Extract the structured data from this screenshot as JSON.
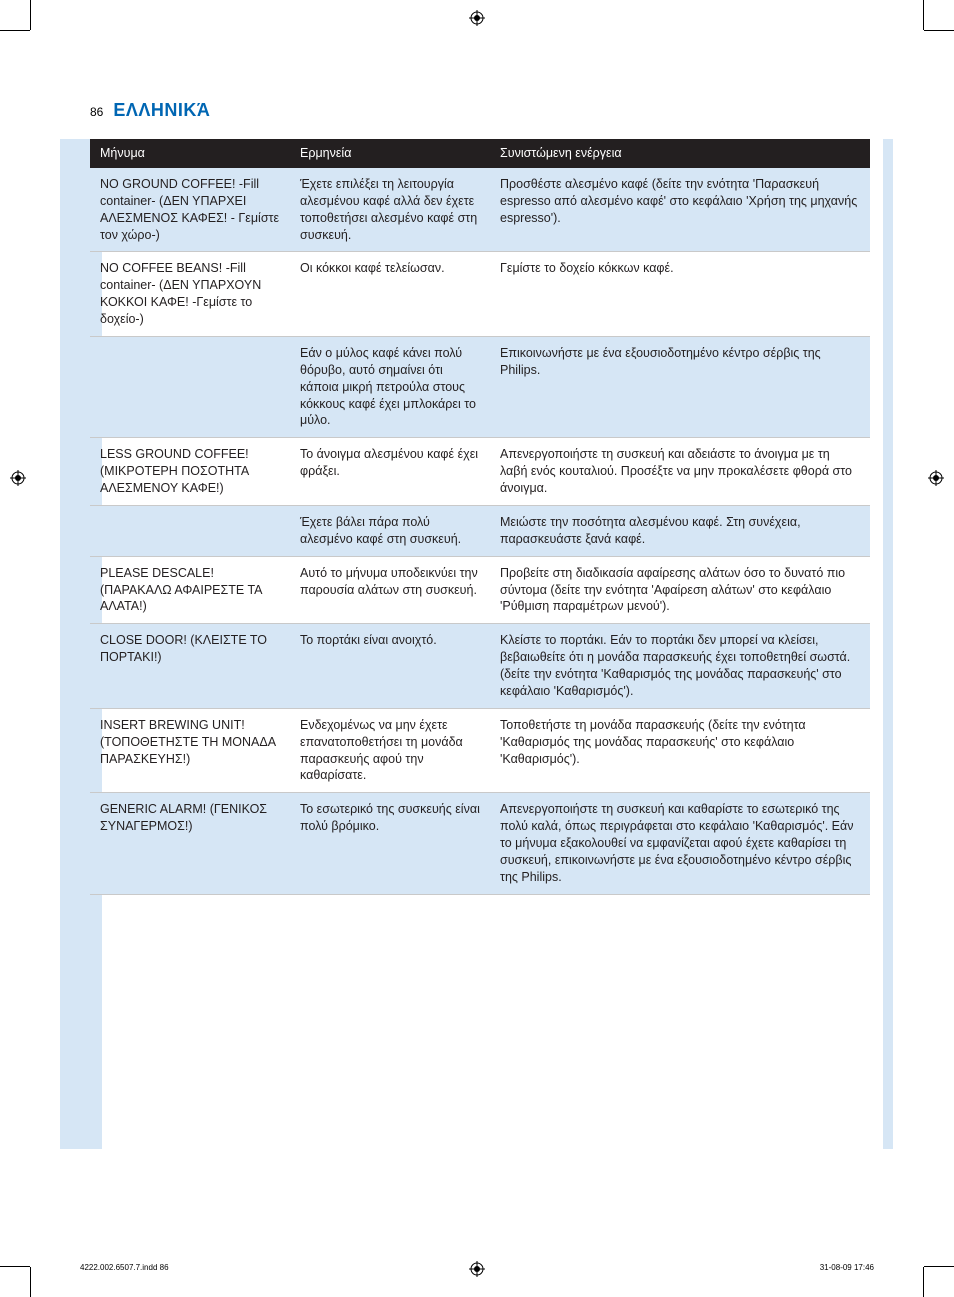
{
  "page_number": "86",
  "page_title": "ΕΛΛΗΝΙΚΆ",
  "columns": {
    "c1": "Μήνυμα",
    "c2": "Ερμηνεία",
    "c3": "Συνιστώμενη ενέργεια"
  },
  "rows": [
    {
      "tint": true,
      "message": "NO GROUND COFFEE! -Fill container- (ΔΕΝ ΥΠΑΡΧΕΙ ΑΛΕΣΜΕΝΟΣ ΚΑΦΕΣ! - Γεμίστε τον χώρο-)",
      "explanation": "Έχετε επιλέξει τη λειτουργία αλεσμένου καφέ αλλά δεν έχετε τοποθετήσει αλεσμένο καφέ στη συσκευή.",
      "action": "Προσθέστε αλεσμένο καφέ (δείτε την ενότητα 'Παρασκευή espresso από αλεσμένο καφέ' στο κεφάλαιο 'Χρήση της μηχανής espresso')."
    },
    {
      "tint": false,
      "message": " NO COFFEE BEANS! -Fill container- (ΔΕΝ ΥΠΑΡΧΟΥΝ ΚΟΚΚΟΙ ΚΑΦΕ! -Γεμίστε το δοχείο-)",
      "explanation": "Οι κόκκοι καφέ τελείωσαν.",
      "action": "Γεμίστε το δοχείο κόκκων καφέ."
    },
    {
      "tint": true,
      "message": "",
      "explanation": "Εάν ο μύλος καφέ κάνει πολύ θόρυβο, αυτό σημαίνει ότι κάποια μικρή πετρούλα στους κόκκους καφέ έχει μπλοκάρει το μύλο.",
      "action": "Επικοινωνήστε με ένα εξουσιοδοτημένο κέντρο σέρβις της Philips."
    },
    {
      "tint": false,
      "message": "LESS GROUND COFFEE! (ΜΙΚΡΟΤΕΡΗ ΠΟΣΟΤΗΤΑ ΑΛΕΣΜΕΝΟΥ ΚΑΦΕ!)",
      "explanation": "Το άνοιγμα αλεσμένου καφέ έχει φράξει.",
      "action": "Απενεργοποιήστε τη συσκευή και αδειάστε το άνοιγμα με τη λαβή ενός κουταλιού. Προσέξτε να μην προκαλέσετε φθορά στο άνοιγμα."
    },
    {
      "tint": true,
      "message": "",
      "explanation": "Έχετε βάλει πάρα πολύ αλεσμένο καφέ στη συσκευή.",
      "action": "Μειώστε την ποσότητα αλεσμένου καφέ. Στη συνέχεια, παρασκευάστε ξανά καφέ."
    },
    {
      "tint": false,
      "message": "PLEASE DESCALE! (ΠΑΡΑΚΑΛΩ ΑΦΑΙΡΕΣΤΕ ΤΑ ΑΛΑΤΑ!)",
      "explanation": "Αυτό το μήνυμα υποδεικνύει την παρουσία αλάτων στη συσκευή.",
      "action": "Προβείτε στη διαδικασία αφαίρεσης αλάτων όσο το δυνατό πιο σύντομα (δείτε την ενότητα 'Αφαίρεση αλάτων' στο κεφάλαιο 'Ρύθμιση παραμέτρων μενού')."
    },
    {
      "tint": true,
      "message": "CLOSE DOOR! (ΚΛΕΙΣΤΕ ΤΟ ΠΟΡΤΑΚΙ!)",
      "explanation": "Το πορτάκι είναι ανοιχτό.",
      "action": "Κλείστε το πορτάκι. Εάν το πορτάκι δεν μπορεί να κλείσει, βεβαιωθείτε ότι η μονάδα παρασκευής έχει τοποθετηθεί σωστά. (δείτε την ενότητα 'Καθαρισμός της μονάδας παρασκευής' στο κεφάλαιο 'Καθαρισμός')."
    },
    {
      "tint": false,
      "message": "INSERT BREWING UNIT! (ΤΟΠΟΘΕΤΗΣΤΕ ΤΗ ΜΟΝΑΔΑ ΠΑΡΑΣΚΕΥΗΣ!)",
      "explanation": "Ενδεχομένως να μην έχετε επανατοποθετήσει τη μονάδα παρασκευής αφού την καθαρίσατε.",
      "action": "Τοποθετήστε τη μονάδα παρασκευής (δείτε την ενότητα 'Καθαρισμός της μονάδας παρασκευής' στο κεφάλαιο  'Καθαρισμός')."
    },
    {
      "tint": true,
      "message": "GENERIC ALARM! (ΓΕΝΙΚΟΣ ΣΥΝΑΓΕΡΜΟΣ!)",
      "explanation": "Το εσωτερικό της συσκευής είναι πολύ βρόμικο.",
      "action": "Απενεργοποιήστε τη συσκευή και καθαρίστε το εσωτερικό της πολύ καλά, όπως περιγράφεται στο κεφάλαιο 'Καθαρισμός'. Εάν το μήνυμα εξακολουθεί να εμφανίζεται αφού έχετε καθαρίσει τη συσκευή, επικοινωνήστε με ένα εξουσιοδοτημένο κέντρο σέρβις της Philips."
    }
  ],
  "footer": {
    "left": "4222.002.6507.7.indd   86",
    "right": "31-08-09   17:46"
  },
  "colors": {
    "tint_bg": "#d6e6f5",
    "header_bg": "#231f20",
    "title_color": "#0066b3"
  }
}
